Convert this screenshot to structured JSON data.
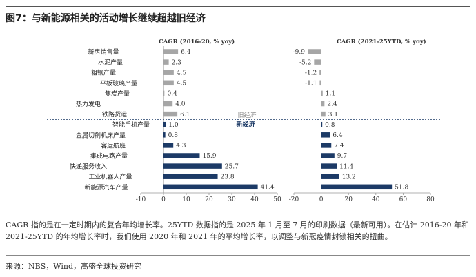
{
  "figure": {
    "title": "图7：与新能源相关的活动增长继续超越旧经济",
    "note": "CAGR 指的是在一定时期内的复合年均增长率。25YTD 数据指的是 2025 年 1 月至 7 月的印刷数据（最新可用）。在估计 2016-20 年和 2021-25YTD 的年均增长率时，我们使用 2020 年和 2021 年的平均增长率，以调整与新冠疫情封锁相关的扭曲。",
    "source": "来源：NBS，Wind，高盛全球投资研究"
  },
  "chart_data": [
    {
      "type": "bar",
      "orientation": "horizontal",
      "title": "CAGR (2016-20, % yoy)",
      "categories": [
        "新房销售量",
        "水泥产量",
        "粗钢产量",
        "平板玻璃产量",
        "焦炭产量",
        "热力发电",
        "铁路货运",
        "智能手机产量",
        "金属切削机床产量",
        "客运航班",
        "集成电路产量",
        "快递服务收入",
        "工业机器人产量",
        "新能源汽车产量"
      ],
      "values": [
        6.4,
        2.3,
        4.5,
        4.5,
        0.4,
        4.0,
        6.1,
        1.0,
        0.8,
        4.3,
        15.9,
        25.7,
        23.8,
        41.4
      ],
      "value_labels": [
        "6.4",
        "2.3",
        "4.5",
        "4.5",
        "0.4",
        "4.0",
        "6.1",
        "1.0",
        "0.8",
        "4.3",
        "15.9",
        "25.7",
        "23.8",
        "41.4"
      ],
      "groups": [
        {
          "name": "旧经济",
          "count": 7,
          "color": "#a6a6a6"
        },
        {
          "name": "新经济",
          "count": 7,
          "color": "#1c3a66"
        }
      ],
      "xlim": [
        -10,
        50
      ],
      "xticks": [
        "-10",
        "0",
        "10",
        "20",
        "30",
        "40",
        "50"
      ]
    },
    {
      "type": "bar",
      "orientation": "horizontal",
      "title": "CAGR (2021-25YTD, % yoy)",
      "categories": [
        "新房销售量",
        "水泥产量",
        "粗钢产量",
        "平板玻璃产量",
        "焦炭产量",
        "热力发电",
        "铁路货运",
        "智能手机产量",
        "金属切削机床产量",
        "客运航班",
        "集成电路产量",
        "快递服务收入",
        "工业机器人产量",
        "新能源汽车产量"
      ],
      "values": [
        -9.9,
        -5.2,
        -1.2,
        -1.1,
        1.1,
        2.4,
        3.1,
        0.8,
        6.4,
        7.4,
        9.7,
        11.4,
        13.2,
        51.8
      ],
      "value_labels": [
        "-9.9",
        "-5.2",
        "-1.2",
        "-1.1",
        "1.1",
        "2.4",
        "3.1",
        "0.8",
        "6.4",
        "7.4",
        "9.7",
        "11.4",
        "13.2",
        "51.8"
      ],
      "groups": [
        {
          "name": "旧经济",
          "count": 7,
          "color": "#a6a6a6"
        },
        {
          "name": "新经济",
          "count": 7,
          "color": "#1c3a66"
        }
      ],
      "xlim": [
        -20,
        80
      ],
      "xticks": [
        "-20",
        "0",
        "20",
        "40",
        "60",
        "80"
      ]
    }
  ]
}
